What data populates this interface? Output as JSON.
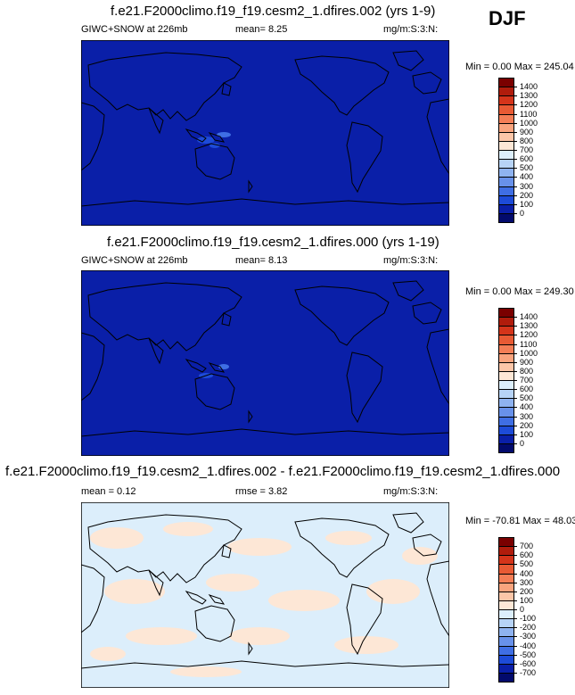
{
  "season": "DJF",
  "panels": [
    {
      "title": "f.e21.F2000climo.f19_f19.cesm2_1.dfires.002 (yrs 1-9)",
      "left_label": "GIWC+SNOW at 226mb",
      "mid_label": "mean=  8.25",
      "right_label": "mg/m:S:3:N:",
      "minmax": "Min =   0.00 Max = 245.04",
      "background": "#0a1fa8",
      "colorbar_labels": [
        "1400",
        "1300",
        "1200",
        "1100",
        "1000",
        "900",
        "800",
        "700",
        "600",
        "500",
        "400",
        "300",
        "200",
        "100",
        "0"
      ],
      "colorbar_colors": [
        "#7a0000",
        "#b01c0c",
        "#d4341a",
        "#e85a34",
        "#f47e56",
        "#f9a47e",
        "#fcc6a8",
        "#fde7d6",
        "#dceefb",
        "#b7d3f6",
        "#8fb3f0",
        "#6891ea",
        "#3f6ee4",
        "#1d4bd8",
        "#0a1fa8",
        "#020a6c"
      ]
    },
    {
      "title": "f.e21.F2000climo.f19_f19.cesm2_1.dfires.000 (yrs 1-19)",
      "left_label": "GIWC+SNOW at 226mb",
      "mid_label": "mean=  8.13",
      "right_label": "mg/m:S:3:N:",
      "minmax": "Min =   0.00 Max = 249.30",
      "background": "#0a1fa8",
      "colorbar_labels": [
        "1400",
        "1300",
        "1200",
        "1100",
        "1000",
        "900",
        "800",
        "700",
        "600",
        "500",
        "400",
        "300",
        "200",
        "100",
        "0"
      ],
      "colorbar_colors": [
        "#7a0000",
        "#b01c0c",
        "#d4341a",
        "#e85a34",
        "#f47e56",
        "#f9a47e",
        "#fcc6a8",
        "#fde7d6",
        "#dceefb",
        "#b7d3f6",
        "#8fb3f0",
        "#6891ea",
        "#3f6ee4",
        "#1d4bd8",
        "#0a1fa8",
        "#020a6c"
      ]
    },
    {
      "title": "f.e21.F2000climo.f19_f19.cesm2_1.dfires.002 - f.e21.F2000climo.f19_f19.cesm2_1.dfires.000",
      "left_label": "mean =   0.12",
      "mid_label": "rmse =   3.82",
      "right_label": "mg/m:S:3:N:",
      "minmax": "Min = -70.81 Max =  48.03",
      "background": "#dceefb",
      "colorbar_labels": [
        "700",
        "600",
        "500",
        "400",
        "300",
        "200",
        "100",
        "0",
        "-100",
        "-200",
        "-300",
        "-400",
        "-500",
        "-600",
        "-700"
      ],
      "colorbar_colors": [
        "#7a0000",
        "#b01c0c",
        "#d4341a",
        "#e85a34",
        "#f47e56",
        "#f9a47e",
        "#fcc6a8",
        "#fde7d6",
        "#dceefb",
        "#b7d3f6",
        "#8fb3f0",
        "#6891ea",
        "#3f6ee4",
        "#1d4bd8",
        "#0a1fa8",
        "#020a6c"
      ]
    }
  ]
}
